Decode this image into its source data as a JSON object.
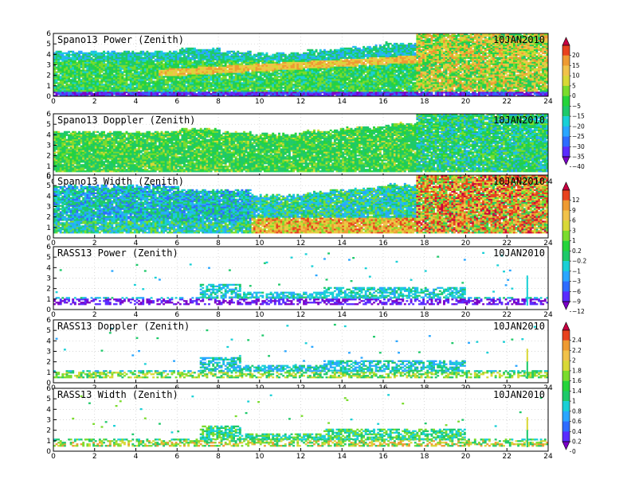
{
  "chart_data": [
    {
      "type": "heatmap",
      "title": "Spano13 Power (Zenith)",
      "date": "10JAN2010",
      "xlim": [
        0,
        24
      ],
      "ylim": [
        0,
        6
      ],
      "x_ticks": [
        "0",
        "2",
        "4",
        "6",
        "8",
        "10",
        "12",
        "14",
        "16",
        "18",
        "20",
        "22",
        "24"
      ],
      "y_ticks": [
        "0",
        "1",
        "2",
        "3",
        "4",
        "5",
        "6"
      ],
      "grid": true,
      "colorbar_group": 0
    },
    {
      "type": "heatmap",
      "title": "Spano13 Doppler (Zenith)",
      "date": "10JAN2010",
      "xlim": [
        0,
        24
      ],
      "ylim": [
        0,
        6
      ],
      "x_ticks": [
        "0",
        "2",
        "4",
        "6",
        "8",
        "10",
        "12",
        "14",
        "16",
        "18",
        "20",
        "22",
        "24"
      ],
      "y_ticks": [
        "0",
        "1",
        "2",
        "3",
        "4",
        "5",
        "6"
      ],
      "grid": true,
      "colorbar_group": 0
    },
    {
      "type": "heatmap",
      "title": "Spano13 Width (Zenith)",
      "date": "10JAN2010",
      "xlim": [
        0,
        24
      ],
      "ylim": [
        0,
        6
      ],
      "x_ticks": [
        "0",
        "2",
        "4",
        "6",
        "8",
        "10",
        "12",
        "14",
        "16",
        "18",
        "20",
        "22",
        "24"
      ],
      "y_ticks": [
        "0",
        "1",
        "2",
        "3",
        "4",
        "5",
        "6"
      ],
      "grid": true,
      "colorbar_group": 1
    },
    {
      "type": "heatmap",
      "title": "RASS13 Power (Zenith)",
      "date": "10JAN2010",
      "xlim": [
        0,
        24
      ],
      "ylim": [
        0,
        6
      ],
      "x_ticks": [
        "0",
        "2",
        "4",
        "6",
        "8",
        "10",
        "12",
        "14",
        "16",
        "18",
        "20",
        "22",
        "24"
      ],
      "y_ticks": [
        "0",
        "1",
        "2",
        "3",
        "4",
        "5",
        "6"
      ],
      "grid": true,
      "colorbar_group": 1
    },
    {
      "type": "heatmap",
      "title": "RASS13 Doppler (Zenith)",
      "date": "10JAN2010",
      "xlim": [
        0,
        24
      ],
      "ylim": [
        0,
        6
      ],
      "x_ticks": [
        "0",
        "2",
        "4",
        "6",
        "8",
        "10",
        "12",
        "14",
        "16",
        "18",
        "20",
        "22",
        "24"
      ],
      "y_ticks": [
        "0",
        "1",
        "2",
        "3",
        "4",
        "5",
        "6"
      ],
      "grid": true,
      "colorbar_group": 2
    },
    {
      "type": "heatmap",
      "title": "RASS13 Width (Zenith)",
      "date": "10JAN2010",
      "xlim": [
        0,
        24
      ],
      "ylim": [
        0,
        6
      ],
      "x_ticks": [
        "0",
        "2",
        "4",
        "6",
        "8",
        "10",
        "12",
        "14",
        "16",
        "18",
        "20",
        "22",
        "24"
      ],
      "y_ticks": [
        "0",
        "1",
        "2",
        "3",
        "4",
        "5",
        "6"
      ],
      "grid": true,
      "colorbar_group": 2
    }
  ],
  "colorbars": [
    {
      "labels": [
        "20",
        "15",
        "10",
        "5",
        "0",
        "−5",
        "−15",
        "−20",
        "−25",
        "−30",
        "−35",
        "−40"
      ]
    },
    {
      "labels": [
        "12",
        "9",
        "6",
        "3",
        "1",
        "0.2",
        "−0.2",
        "−1",
        "−3",
        "−6",
        "−9",
        "−12"
      ]
    },
    {
      "labels": [
        "2.4",
        "2.2",
        "2",
        "1.8",
        "1.6",
        "1.4",
        "1",
        "0.8",
        "0.6",
        "0.4",
        "0.2",
        "0"
      ]
    }
  ],
  "palette": [
    "#7b00c8",
    "#5a2cff",
    "#2e6cff",
    "#2aa6ff",
    "#19d0d6",
    "#1ec96a",
    "#25d43a",
    "#7adc2c",
    "#d8d836",
    "#f1c24a",
    "#ee9a32",
    "#e8421e",
    "#c80040"
  ]
}
